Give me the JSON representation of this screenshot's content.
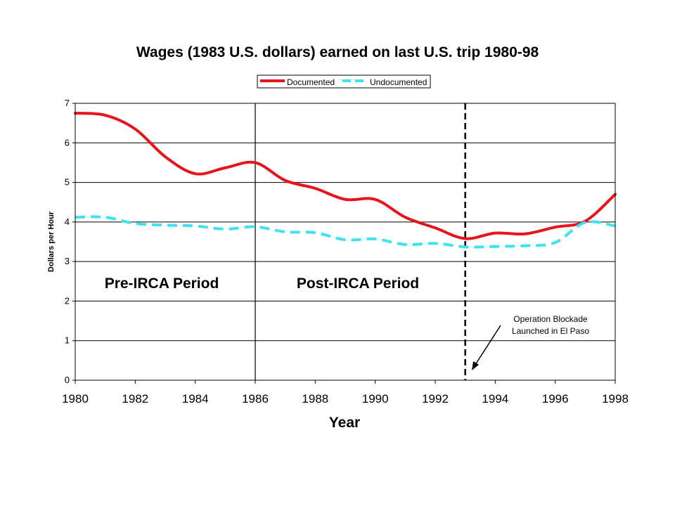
{
  "chart_data": {
    "type": "line",
    "title": "Wages (1983 U.S. dollars) earned on last U.S. trip 1980-98",
    "xlabel": "Year",
    "ylabel": "Dollars per Hour",
    "xlim": [
      1980,
      1998
    ],
    "ylim": [
      0,
      7
    ],
    "x_ticks": [
      "1980",
      "1982",
      "1984",
      "1986",
      "1988",
      "1990",
      "1992",
      "1994",
      "1996",
      "1998"
    ],
    "y_ticks": [
      "0",
      "1",
      "2",
      "3",
      "4",
      "5",
      "6",
      "7"
    ],
    "grid": "horizontal",
    "legend_position": "top-center",
    "series": [
      {
        "name": "Documented",
        "color": "#e8141c",
        "style": "solid",
        "x": [
          1980,
          1981,
          1982,
          1983,
          1984,
          1985,
          1986,
          1987,
          1988,
          1989,
          1990,
          1991,
          1992,
          1993,
          1994,
          1995,
          1996,
          1997,
          1998
        ],
        "values": [
          6.75,
          6.7,
          6.35,
          5.65,
          5.22,
          5.37,
          5.5,
          5.05,
          4.85,
          4.57,
          4.57,
          4.12,
          3.85,
          3.58,
          3.72,
          3.7,
          3.87,
          4.02,
          4.7
        ]
      },
      {
        "name": "Undocumented",
        "color": "#3fe3ee",
        "style": "dashed",
        "x": [
          1980,
          1981,
          1982,
          1983,
          1984,
          1985,
          1986,
          1987,
          1988,
          1989,
          1990,
          1991,
          1992,
          1993,
          1994,
          1995,
          1996,
          1997,
          1998
        ],
        "values": [
          4.12,
          4.12,
          3.96,
          3.92,
          3.9,
          3.82,
          3.88,
          3.75,
          3.73,
          3.55,
          3.57,
          3.43,
          3.46,
          3.37,
          3.38,
          3.4,
          3.48,
          3.99,
          3.9
        ]
      }
    ],
    "vertical_markers": [
      {
        "x": 1986,
        "style": "solid"
      },
      {
        "x": 1993,
        "style": "dashed"
      }
    ],
    "annotations": {
      "pre_period": "Pre-IRCA Period",
      "post_period": "Post-IRCA Period",
      "blockade_line1": "Operation Blockade",
      "blockade_line2": "Launched in El Paso"
    }
  }
}
